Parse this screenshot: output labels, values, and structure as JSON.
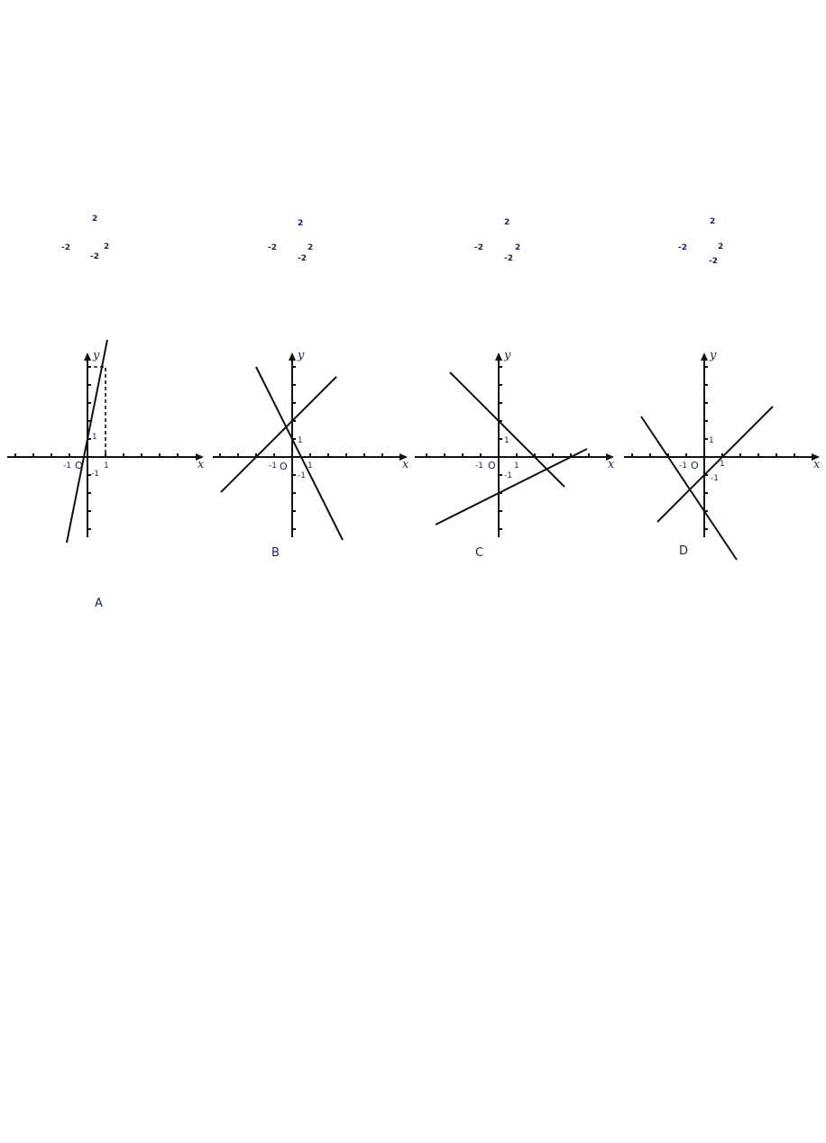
{
  "stray_labels": [
    {
      "top": "2",
      "left": "-2",
      "right": "2",
      "bottom": "-2"
    },
    {
      "top": "2",
      "left": "-2",
      "right": "2",
      "bottom": "-2"
    },
    {
      "top": "2",
      "left": "-2",
      "right": "2",
      "bottom": "-2"
    },
    {
      "top": "2",
      "left": "-2",
      "right": "2",
      "bottom": "-2"
    }
  ],
  "graphs": [
    {
      "option": "A",
      "axis_x": "x",
      "axis_y": "y",
      "origin": "O",
      "tick_labels": {
        "xneg": "-1",
        "xpos": "1",
        "ypos": "1",
        "yneg": "-1"
      },
      "lines": [
        {
          "slope": 5,
          "intercept": 1
        }
      ],
      "dashed_guide": {
        "x": 1,
        "y": 5
      }
    },
    {
      "option": "B",
      "axis_x": "x",
      "axis_y": "y",
      "origin": "O",
      "tick_labels": {
        "xneg": "-1",
        "xpos": "1",
        "ypos": "1",
        "yneg": "-1"
      },
      "lines": [
        {
          "slope": 1,
          "intercept": 2
        },
        {
          "slope": -2,
          "intercept": 1
        }
      ]
    },
    {
      "option": "C",
      "axis_x": "x",
      "axis_y": "y",
      "origin": "O",
      "tick_labels": {
        "xneg": "-1",
        "xpos": "1",
        "ypos": "1",
        "yneg": "-1"
      },
      "lines": [
        {
          "slope": -1,
          "intercept": 2
        },
        {
          "slope": 0.5,
          "intercept": -2
        }
      ]
    },
    {
      "option": "D",
      "axis_x": "x",
      "axis_y": "y",
      "origin": "O",
      "tick_labels": {
        "xneg": "-1",
        "xpos": "1",
        "ypos": "1",
        "yneg": "-1"
      },
      "lines": [
        {
          "slope": 1,
          "intercept": -1
        },
        {
          "slope": -1.5,
          "intercept": -3
        }
      ]
    }
  ]
}
